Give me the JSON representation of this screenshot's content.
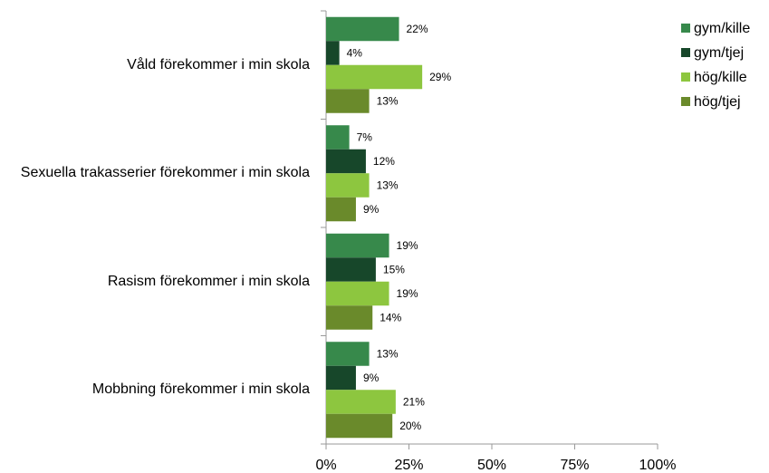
{
  "chart_data": {
    "type": "bar",
    "orientation": "horizontal",
    "categories": [
      "Våld förekommer i min skola",
      "Sexuella trakasserier förekommer i min skola",
      "Rasism förekommer i min skola",
      "Mobbning förekommer i min skola"
    ],
    "series": [
      {
        "name": "gym/kille",
        "color": "#37894b",
        "values": [
          22,
          7,
          19,
          13
        ],
        "value_labels": [
          "22%",
          "7%",
          "19%",
          "13%"
        ]
      },
      {
        "name": "gym/tjej",
        "color": "#17472a",
        "values": [
          4,
          12,
          15,
          9
        ],
        "value_labels": [
          "4%",
          "12%",
          "15%",
          "9%"
        ]
      },
      {
        "name": "hög/kille",
        "color": "#8dc63f",
        "values": [
          29,
          13,
          19,
          21
        ],
        "value_labels": [
          "29%",
          "13%",
          "19%",
          "21%"
        ]
      },
      {
        "name": "hög/tjej",
        "color": "#6a8a2b",
        "values": [
          13,
          9,
          14,
          20
        ],
        "value_labels": [
          "13%",
          "9%",
          "14%",
          "20%"
        ]
      }
    ],
    "xlim": [
      0,
      100
    ],
    "xticks": [
      {
        "value": 0,
        "label": "0%"
      },
      {
        "value": 25,
        "label": "25%"
      },
      {
        "value": 50,
        "label": "50%"
      },
      {
        "value": 75,
        "label": "75%"
      },
      {
        "value": 100,
        "label": "100%"
      }
    ],
    "legend": "top-right"
  }
}
